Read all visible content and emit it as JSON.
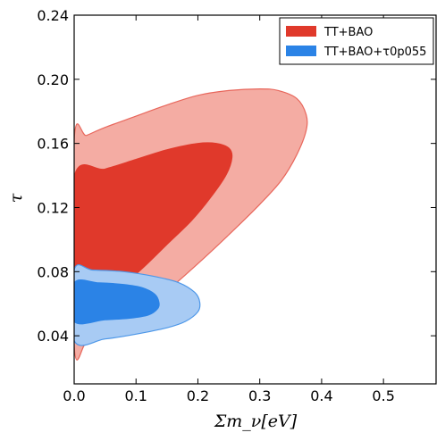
{
  "chart_data": {
    "type": "contour",
    "title": "",
    "xlabel": "Σm_ν[eV]",
    "ylabel": "τ",
    "xlim": [
      0.0,
      0.585
    ],
    "ylim": [
      0.01,
      0.24
    ],
    "x_ticks": [
      "0.0",
      "0.1",
      "0.2",
      "0.3",
      "0.4",
      "0.5"
    ],
    "x_tick_values": [
      0.0,
      0.1,
      0.2,
      0.3,
      0.4,
      0.5
    ],
    "y_ticks": [
      "0.04",
      "0.08",
      "0.12",
      "0.16",
      "0.20",
      "0.24"
    ],
    "y_tick_values": [
      0.04,
      0.08,
      0.12,
      0.16,
      0.2,
      0.24
    ],
    "grid": false,
    "legend_position": "top-right",
    "series": [
      {
        "name": "TT+BAO",
        "color": "#e0392b",
        "contours": [
          {
            "level": "95%",
            "fill": "#f4aca3",
            "stroke": "#e8675c",
            "points": [
              [
                0.0,
                0.034
              ],
              [
                0.02,
                0.036
              ],
              [
                0.05,
                0.042
              ],
              [
                0.1,
                0.053
              ],
              [
                0.15,
                0.068
              ],
              [
                0.2,
                0.085
              ],
              [
                0.25,
                0.103
              ],
              [
                0.3,
                0.122
              ],
              [
                0.335,
                0.137
              ],
              [
                0.36,
                0.153
              ],
              [
                0.375,
                0.168
              ],
              [
                0.375,
                0.178
              ],
              [
                0.36,
                0.188
              ],
              [
                0.33,
                0.193
              ],
              [
                0.3,
                0.194
              ],
              [
                0.25,
                0.193
              ],
              [
                0.2,
                0.19
              ],
              [
                0.15,
                0.184
              ],
              [
                0.1,
                0.177
              ],
              [
                0.05,
                0.17
              ],
              [
                0.02,
                0.165
              ],
              [
                0.0,
                0.162
              ]
            ]
          },
          {
            "level": "68%",
            "fill": "#e0392b",
            "stroke": "#e0392b",
            "points": [
              [
                0.0,
                0.055
              ],
              [
                0.03,
                0.06
              ],
              [
                0.07,
                0.069
              ],
              [
                0.11,
                0.082
              ],
              [
                0.15,
                0.097
              ],
              [
                0.19,
                0.112
              ],
              [
                0.22,
                0.126
              ],
              [
                0.245,
                0.14
              ],
              [
                0.255,
                0.151
              ],
              [
                0.25,
                0.157
              ],
              [
                0.23,
                0.16
              ],
              [
                0.2,
                0.16
              ],
              [
                0.15,
                0.156
              ],
              [
                0.1,
                0.15
              ],
              [
                0.05,
                0.144
              ],
              [
                0.0,
                0.139
              ]
            ]
          }
        ]
      },
      {
        "name": "TT+BAO+τ0p055",
        "color": "#2b83e6",
        "contours": [
          {
            "level": "95%",
            "fill": "#a8cbf4",
            "stroke": "#4d97e8",
            "points": [
              [
                0.0,
                0.037
              ],
              [
                0.05,
                0.038
              ],
              [
                0.1,
                0.041
              ],
              [
                0.15,
                0.045
              ],
              [
                0.18,
                0.049
              ],
              [
                0.2,
                0.055
              ],
              [
                0.203,
                0.061
              ],
              [
                0.195,
                0.067
              ],
              [
                0.17,
                0.073
              ],
              [
                0.13,
                0.077
              ],
              [
                0.08,
                0.08
              ],
              [
                0.03,
                0.081
              ],
              [
                0.0,
                0.081
              ]
            ]
          },
          {
            "level": "68%",
            "fill": "#2b83e6",
            "stroke": "#2b83e6",
            "points": [
              [
                0.0,
                0.049
              ],
              [
                0.05,
                0.05
              ],
              [
                0.09,
                0.051
              ],
              [
                0.12,
                0.053
              ],
              [
                0.135,
                0.057
              ],
              [
                0.137,
                0.061
              ],
              [
                0.13,
                0.066
              ],
              [
                0.11,
                0.07
              ],
              [
                0.08,
                0.072
              ],
              [
                0.04,
                0.073
              ],
              [
                0.0,
                0.073
              ]
            ]
          }
        ]
      }
    ]
  }
}
